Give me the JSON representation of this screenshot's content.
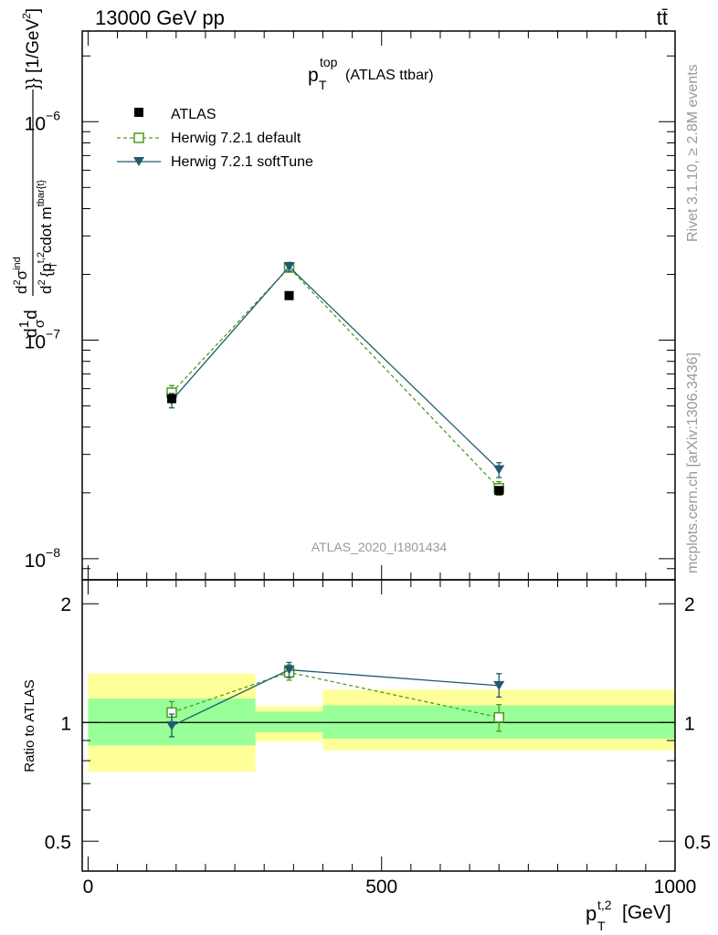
{
  "header": {
    "left_label": "13000 GeV pp",
    "right_label": "tt̄"
  },
  "side_labels": {
    "rivet": "Rivet 3.1.10, ≥ 2.8M events",
    "mcplots": "mcplots.cern.ch [arXiv:1306.3436]"
  },
  "colors": {
    "atlas": "#000000",
    "herwig_default": "#4f9a1c",
    "herwig_softtune": "#1f5a6e",
    "band_outer": "#ffff99",
    "band_inner": "#99ff99",
    "watermark": "#999999"
  },
  "chart_data": [
    {
      "type": "line",
      "panel": "main",
      "title_main": "p",
      "title_sup": "top",
      "title_sub": "T",
      "title_suffix": "(ATLAS ttbar)",
      "watermark": "ATLAS_2020_I1801434",
      "ylabel": "d1dσdd²σⁱⁿᵈd² {p_T^{t,2} cdot m^{tbar{t}}} [1/GeV²]",
      "ylabel_parts": {
        "frac_top": "d",
        "frac_num": "1",
        "frac_den": "σ",
        "d2": "d",
        "sigma_ind": "σ",
        "ind_sup": "ind",
        "den_d": "d",
        "den_p": "{p",
        "den_t2": "t,2",
        "den_T": "T",
        "den_cdot": "cdot m",
        "den_tbar": "tbar{t}",
        "den_close": "}} [1/GeV",
        "den_exp": "2",
        "den_end": "]"
      },
      "y_scale": "log",
      "ylim": [
        8e-09,
        2.6e-06
      ],
      "xlim": [
        -10,
        1000
      ],
      "y_ticks": [
        {
          "value": 1e-06,
          "base": "10",
          "exp": "−6"
        },
        {
          "value": 1e-07,
          "base": "10",
          "exp": "−7"
        },
        {
          "value": 1e-08,
          "base": "10",
          "exp": "−8"
        }
      ],
      "legend": [
        {
          "key": "atlas",
          "label": "ATLAS",
          "marker": "square-filled"
        },
        {
          "key": "default",
          "label": "Herwig 7.2.1 default",
          "marker": "square-open"
        },
        {
          "key": "softtune",
          "label": "Herwig 7.2.1 softTune",
          "marker": "triangle-down"
        }
      ],
      "x_bins": [
        [
          0,
          285
        ],
        [
          285,
          400
        ],
        [
          400,
          1000
        ]
      ],
      "series": [
        {
          "key": "atlas",
          "name": "ATLAS",
          "x": [
            142.5,
            342.5,
            700
          ],
          "values": [
            5.4e-08,
            1.6e-07,
            2.05e-08
          ]
        },
        {
          "key": "default",
          "name": "Herwig 7.2.1 default",
          "x": [
            142.5,
            342.5,
            700
          ],
          "values": [
            5.75e-08,
            2.15e-07,
            2.1e-08
          ],
          "err_lo": [
            5.3e-08,
            2.05e-07,
            1.95e-08
          ],
          "err_hi": [
            6.2e-08,
            2.25e-07,
            2.25e-08
          ]
        },
        {
          "key": "softtune",
          "name": "Herwig 7.2.1 softTune",
          "x": [
            142.5,
            342.5,
            700
          ],
          "values": [
            5.3e-08,
            2.17e-07,
            2.55e-08
          ],
          "err_lo": [
            4.9e-08,
            2.07e-07,
            2.35e-08
          ],
          "err_hi": [
            5.7e-08,
            2.27e-07,
            2.75e-08
          ]
        }
      ]
    },
    {
      "type": "line",
      "panel": "ratio",
      "ylabel": "Ratio to ATLAS",
      "y_scale": "log",
      "ylim": [
        0.42,
        2.3
      ],
      "y_ticks": [
        {
          "value": 0.5,
          "label": "0.5"
        },
        {
          "value": 1,
          "label": "1"
        },
        {
          "value": 2,
          "label": "2"
        }
      ],
      "xlim": [
        -10,
        1000
      ],
      "x_ticks": [
        {
          "value": 0,
          "label": "0"
        },
        {
          "value": 500,
          "label": "500"
        },
        {
          "value": 1000,
          "label": "1000"
        }
      ],
      "xlabel_main": "p",
      "xlabel_sup": "t,2",
      "xlabel_sub": "T",
      "xlabel_unit": "[GeV]",
      "bands": [
        {
          "x0": 0,
          "x1": 285,
          "outer": [
            0.75,
            1.33
          ],
          "inner": [
            0.875,
            1.15
          ]
        },
        {
          "x0": 285,
          "x1": 400,
          "outer": [
            0.895,
            1.1
          ],
          "inner": [
            0.945,
            1.065
          ]
        },
        {
          "x0": 400,
          "x1": 1000,
          "outer": [
            0.85,
            1.21
          ],
          "inner": [
            0.91,
            1.105
          ]
        }
      ],
      "series": [
        {
          "key": "default",
          "name": "Herwig 7.2.1 default",
          "x": [
            142.5,
            342.5,
            700
          ],
          "values": [
            1.06,
            1.34,
            1.03
          ],
          "err_lo": [
            0.98,
            1.28,
            0.95
          ],
          "err_hi": [
            1.13,
            1.4,
            1.11
          ]
        },
        {
          "key": "softtune",
          "name": "Herwig 7.2.1 softTune",
          "x": [
            142.5,
            342.5,
            700
          ],
          "values": [
            0.98,
            1.36,
            1.24
          ],
          "err_lo": [
            0.92,
            1.3,
            1.16
          ],
          "err_hi": [
            1.05,
            1.42,
            1.33
          ]
        }
      ]
    }
  ]
}
